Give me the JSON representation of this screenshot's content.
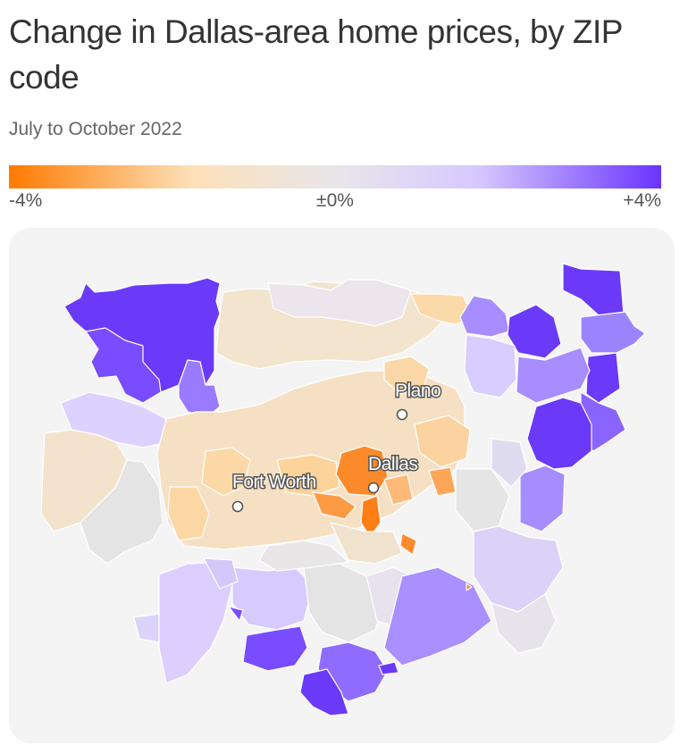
{
  "header": {
    "title": "Change in Dallas-area home prices, by ZIP code",
    "subtitle": "July to October 2022"
  },
  "legend": {
    "min_label": "-4%",
    "mid_label": "±0%",
    "max_label": "+4%",
    "min_value": -4,
    "max_value": 4,
    "colors": {
      "negative_strong": "#ff7a00",
      "negative_light": "#fde0b8",
      "neutral": "#e6e6e6",
      "positive_light": "#d6c8ff",
      "positive_strong": "#6a34ff"
    }
  },
  "map": {
    "panel_color": "#f4f4f4",
    "cities": [
      {
        "name": "Plano",
        "id": "plano"
      },
      {
        "name": "Dallas",
        "id": "dallas"
      },
      {
        "name": "Fort Worth",
        "id": "fort-worth"
      }
    ]
  }
}
